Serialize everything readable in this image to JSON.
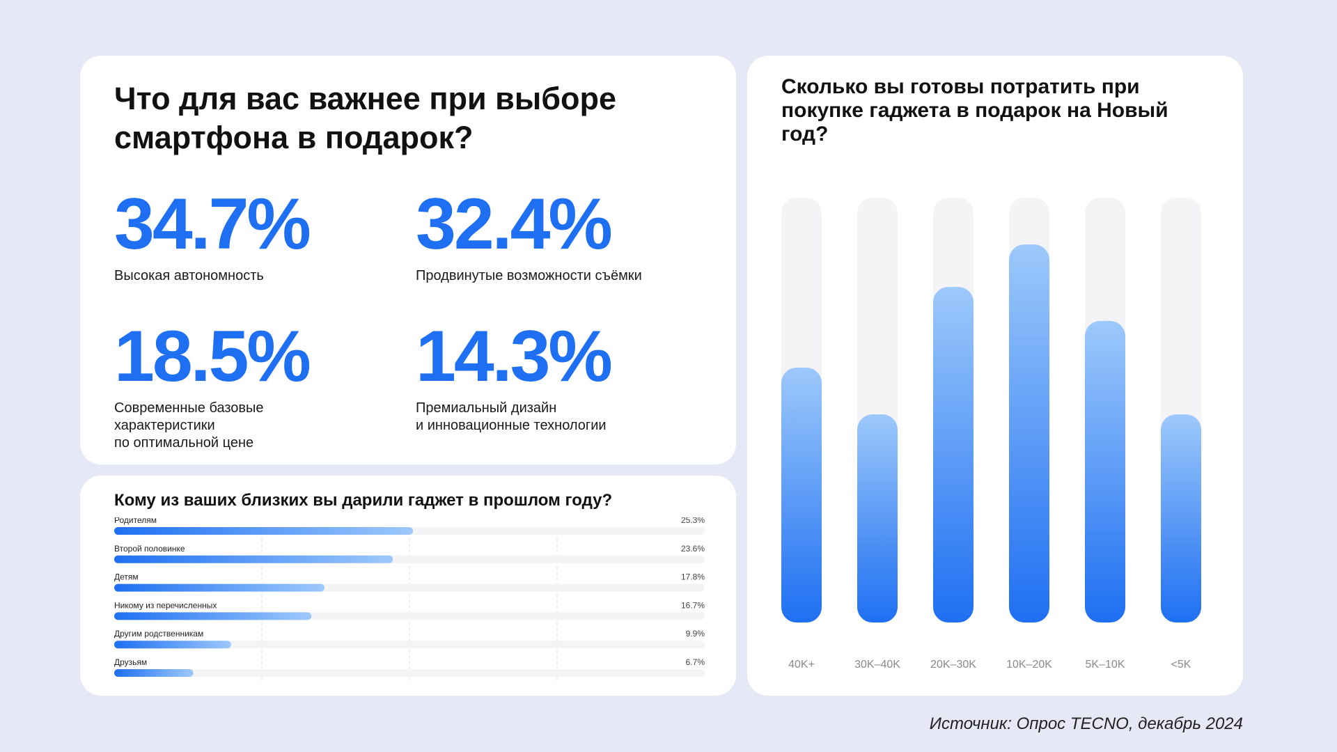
{
  "priorities": {
    "title": "Что для вас важнее при выборе смартфона в подарок?",
    "items": [
      {
        "value": "34.7%",
        "label": "Высокая автономность"
      },
      {
        "value": "32.4%",
        "label": "Продвинутые возможности съёмки"
      },
      {
        "value": "18.5%",
        "label": "Современные базовые\nхарактеристики\nпо оптимальной цене"
      },
      {
        "value": "14.3%",
        "label": "Премиальный дизайн\nи инновационные технологии"
      }
    ]
  },
  "recipients": {
    "title": "Кому из ваших близких вы дарили гаджет в прошлом году?"
  },
  "spend": {
    "title": "Сколько вы готовы потратить при покупке гаджета в подарок на Новый год?"
  },
  "source": "Источник: Опрос TECNO, декабрь 2024",
  "colors": {
    "accent": "#1e6ff2",
    "accent_light": "#9dc9fb",
    "track": "#f4f4f6",
    "background": "#e6e9f5"
  },
  "chart_data": [
    {
      "type": "bar",
      "orientation": "horizontal",
      "title": "Кому из ваших близких вы дарили гаджет в прошлом году?",
      "categories": [
        "Родителям",
        "Второй половинке",
        "Детям",
        "Никому из перечисленных",
        "Другим родственникам",
        "Друзьям"
      ],
      "values": [
        25.3,
        23.6,
        17.8,
        16.7,
        9.9,
        6.7
      ],
      "value_labels": [
        "25.3%",
        "23.6%",
        "17.8%",
        "16.7%",
        "9.9%",
        "6.7%"
      ],
      "xlim": [
        0,
        50
      ],
      "grid": true
    },
    {
      "type": "bar",
      "orientation": "vertical",
      "title": "Сколько вы готовы потратить при покупке гаджета в подарок на Новый год?",
      "categories": [
        "40K+",
        "30K–40K",
        "20K–30K",
        "10K–20K",
        "5K–10K",
        "<5K"
      ],
      "values": [
        60,
        49,
        79,
        89,
        71,
        49
      ],
      "ylim": [
        0,
        100
      ],
      "grid": false
    }
  ]
}
